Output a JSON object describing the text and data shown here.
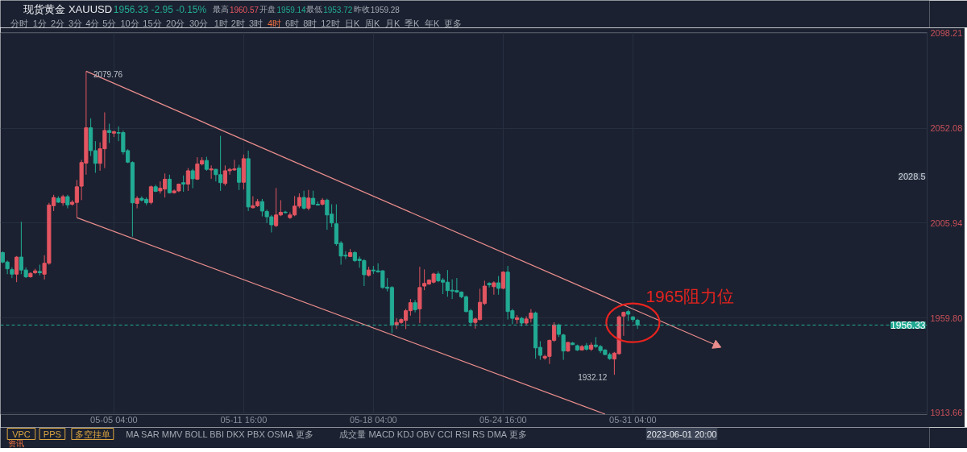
{
  "chart_data": {
    "type": "candlestick",
    "title": "现货黄金 XAUUSD",
    "subtitle": "1956.33 -2.95 -0.15%",
    "categories": [
      null,
      null,
      null,
      null,
      null,
      null,
      null,
      null,
      null,
      null,
      null,
      null,
      null,
      null,
      null,
      null,
      null,
      null,
      null,
      null,
      null,
      null,
      null,
      null,
      "05-05 04:00",
      null,
      null,
      null,
      null,
      null,
      null,
      null,
      null,
      null,
      null,
      null,
      null,
      null,
      null,
      null,
      null,
      null,
      null,
      null,
      null,
      null,
      null,
      null,
      null,
      null,
      null,
      null,
      "05-11 16:00",
      null,
      null,
      null,
      null,
      null,
      null,
      null,
      null,
      null,
      null,
      null,
      null,
      null,
      null,
      null,
      null,
      null,
      null,
      null,
      null,
      null,
      null,
      null,
      null,
      null,
      null,
      null,
      "05-18 04:00",
      null,
      null,
      null,
      null,
      null,
      null,
      null,
      null,
      null,
      null,
      null,
      null,
      null,
      null,
      null,
      null,
      null,
      null,
      null,
      null,
      null,
      null,
      null,
      null,
      null,
      null,
      null,
      "05-24 16:00",
      null,
      null,
      null,
      null,
      null,
      null,
      null,
      null,
      null,
      null,
      null,
      null,
      null,
      null,
      null,
      null,
      null,
      null,
      null,
      null,
      null,
      null,
      null,
      null,
      null,
      null,
      null,
      "05-31 04:00",
      null,
      null,
      null,
      null,
      null,
      null,
      null,
      null,
      null,
      null,
      null,
      null,
      null,
      null,
      null,
      null,
      null,
      null,
      null,
      null,
      null,
      null,
      null,
      null,
      null,
      null,
      null,
      null,
      null,
      null,
      null,
      null,
      null,
      null,
      null,
      null,
      null,
      null,
      null,
      null,
      null,
      null,
      null,
      null,
      null,
      null,
      null,
      null,
      null,
      null,
      null,
      null,
      null,
      null,
      null,
      null,
      null,
      null,
      null,
      null,
      null,
      null,
      null
    ],
    "ohlc": [
      [
        1991.6,
        1992.2,
        1986.4,
        1987.0
      ],
      [
        1987.0,
        1987.7,
        1981.1,
        1983.7
      ],
      [
        1983.3,
        1984.4,
        1979.2,
        1981.1
      ],
      [
        1981.1,
        1989.9,
        1977.2,
        1989.4
      ],
      [
        1989.4,
        2006.6,
        1981.1,
        1983.1
      ],
      [
        1983.1,
        1984.4,
        1979.2,
        1979.8
      ],
      [
        1979.8,
        1982.0,
        1979.4,
        1981.5
      ],
      [
        1981.8,
        1983.7,
        1981.1,
        1982.7
      ],
      [
        1982.4,
        1985.7,
        1980.5,
        1981.8
      ],
      [
        1981.1,
        1990.3,
        1978.5,
        1986.4
      ],
      [
        1986.4,
        2015.8,
        1985.7,
        2014.7
      ],
      [
        2014.4,
        2019.7,
        2011.8,
        2018.4
      ],
      [
        2018.0,
        2019.0,
        2015.8,
        2016.1
      ],
      [
        2015.8,
        2019.7,
        2014.4,
        2018.8
      ],
      [
        2018.8,
        2019.7,
        2013.1,
        2014.8
      ],
      [
        2015.1,
        2017.1,
        2014.4,
        2016.1
      ],
      [
        2016.0,
        2026.9,
        2008.6,
        2023.6
      ],
      [
        2023.9,
        2036.7,
        2017.1,
        2035.4
      ],
      [
        2035.1,
        2079.76,
        2029.5,
        2052.3
      ],
      [
        2052.3,
        2056.9,
        2038.6,
        2041.2
      ],
      [
        2041.2,
        2045.8,
        2030.4,
        2035.0
      ],
      [
        2035.0,
        2045.2,
        2031.4,
        2042.1
      ],
      [
        2042.1,
        2059.8,
        2032.7,
        2051.0
      ],
      [
        2051.0,
        2054.3,
        2044.9,
        2050.0
      ],
      [
        2049.7,
        2051.0,
        2047.8,
        2050.4
      ],
      [
        2050.0,
        2053.0,
        2045.8,
        2049.7
      ],
      [
        2050.0,
        2051.0,
        2039.3,
        2040.6
      ],
      [
        2041.2,
        2041.9,
        2035.1,
        2035.6
      ],
      [
        2035.4,
        2036.0,
        1999.4,
        2015.8
      ],
      [
        2015.5,
        2019.0,
        2013.1,
        2018.0
      ],
      [
        2018.0,
        2019.0,
        2016.4,
        2017.1
      ],
      [
        2017.5,
        2018.4,
        2014.7,
        2015.8
      ],
      [
        2016.0,
        2024.2,
        2015.1,
        2023.6
      ],
      [
        2023.6,
        2024.6,
        2021.0,
        2021.4
      ],
      [
        2021.6,
        2026.2,
        2020.3,
        2022.9
      ],
      [
        2022.5,
        2030.1,
        2018.4,
        2027.3
      ],
      [
        2027.3,
        2029.5,
        2020.3,
        2020.7
      ],
      [
        2020.7,
        2022.3,
        2020.3,
        2021.6
      ],
      [
        2021.6,
        2025.2,
        2021.0,
        2024.9
      ],
      [
        2025.6,
        2029.1,
        2021.2,
        2024.9
      ],
      [
        2024.9,
        2032.7,
        2021.6,
        2031.4
      ],
      [
        2031.4,
        2032.3,
        2022.9,
        2027.5
      ],
      [
        2027.3,
        2038.0,
        2026.9,
        2034.7
      ],
      [
        2034.7,
        2038.0,
        2034.0,
        2036.4
      ],
      [
        2036.4,
        2038.2,
        2031.4,
        2032.1
      ],
      [
        2031.8,
        2034.0,
        2027.5,
        2032.3
      ],
      [
        2032.1,
        2032.3,
        2026.2,
        2029.5
      ],
      [
        2029.5,
        2048.4,
        2021.6,
        2025.6
      ],
      [
        2025.2,
        2034.0,
        2024.2,
        2031.4
      ],
      [
        2031.4,
        2032.7,
        2029.5,
        2032.1
      ],
      [
        2031.8,
        2036.7,
        2031.4,
        2032.3
      ],
      [
        2032.7,
        2034.3,
        2022.0,
        2025.8
      ],
      [
        2025.8,
        2039.3,
        2022.3,
        2037.3
      ],
      [
        2037.3,
        2041.2,
        2011.8,
        2013.8
      ],
      [
        2013.4,
        2019.0,
        2013.1,
        2014.4
      ],
      [
        2014.4,
        2017.7,
        2013.8,
        2016.4
      ],
      [
        2016.4,
        2017.7,
        2009.2,
        2011.8
      ],
      [
        2011.6,
        2012.5,
        2006.0,
        2009.0
      ],
      [
        2009.0,
        2009.9,
        2001.4,
        2005.1
      ],
      [
        2004.7,
        2023.0,
        2004.0,
        2009.9
      ],
      [
        2009.9,
        2017.1,
        2009.3,
        2011.2
      ],
      [
        2011.3,
        2011.9,
        2010.6,
        2011.0
      ],
      [
        2008.6,
        2011.2,
        2008.0,
        2009.9
      ],
      [
        2009.9,
        2019.1,
        2009.3,
        2014.2
      ],
      [
        2014.2,
        2020.4,
        2013.2,
        2018.4
      ],
      [
        2018.4,
        2021.7,
        2012.5,
        2013.2
      ],
      [
        2013.2,
        2022.1,
        2012.1,
        2018.1
      ],
      [
        2018.0,
        2021.7,
        2014.7,
        2015.1
      ],
      [
        2015.1,
        2016.4,
        2014.5,
        2014.7
      ],
      [
        2015.1,
        2018.1,
        2014.5,
        2017.1
      ],
      [
        2017.1,
        2017.8,
        2002.7,
        2009.9
      ],
      [
        2010.3,
        2015.1,
        2004.0,
        2006.0
      ],
      [
        2005.6,
        2015.1,
        1994.9,
        1995.9
      ],
      [
        1996.2,
        1997.2,
        1985.7,
        1989.9
      ],
      [
        1990.3,
        1992.3,
        1988.4,
        1989.9
      ],
      [
        1989.7,
        1993.3,
        1989.4,
        1991.6
      ],
      [
        1991.6,
        1992.3,
        1987.0,
        1987.7
      ],
      [
        1988.4,
        1989.7,
        1984.2,
        1987.7
      ],
      [
        1987.7,
        1988.4,
        1975.3,
        1980.8
      ],
      [
        1980.5,
        1984.7,
        1979.9,
        1983.1
      ],
      [
        1983.1,
        1985.1,
        1981.2,
        1982.7
      ],
      [
        1982.7,
        1986.4,
        1981.8,
        1982.2
      ],
      [
        1982.7,
        1983.1,
        1974.0,
        1974.6
      ],
      [
        1974.8,
        1979.2,
        1972.7,
        1974.2
      ],
      [
        1974.6,
        1975.3,
        1952.4,
        1956.3
      ],
      [
        1956.3,
        1959.6,
        1954.4,
        1957.6
      ],
      [
        1957.6,
        1959.6,
        1957.0,
        1959.0
      ],
      [
        1958.6,
        1964.2,
        1954.4,
        1963.3
      ],
      [
        1963.3,
        1969.0,
        1960.9,
        1967.2
      ],
      [
        1967.2,
        1968.5,
        1962.5,
        1963.8
      ],
      [
        1964.2,
        1984.7,
        1957.3,
        1974.6
      ],
      [
        1975.3,
        1983.4,
        1973.3,
        1976.6
      ],
      [
        1976.3,
        1978.6,
        1975.9,
        1978.2
      ],
      [
        1977.2,
        1981.8,
        1976.6,
        1981.2
      ],
      [
        1981.2,
        1982.5,
        1977.2,
        1977.9
      ],
      [
        1978.2,
        1979.2,
        1971.4,
        1977.2
      ],
      [
        1977.2,
        1983.1,
        1970.1,
        1973.1
      ],
      [
        1973.3,
        1978.6,
        1969.0,
        1972.9
      ],
      [
        1973.1,
        1979.2,
        1972.0,
        1972.4
      ],
      [
        1972.4,
        1972.7,
        1969.4,
        1970.1
      ],
      [
        1970.1,
        1970.7,
        1962.5,
        1962.9
      ],
      [
        1963.3,
        1964.2,
        1955.7,
        1957.6
      ],
      [
        1957.6,
        1959.9,
        1954.6,
        1959.3
      ],
      [
        1959.0,
        1974.0,
        1958.6,
        1967.4
      ],
      [
        1966.8,
        1977.9,
        1966.1,
        1975.3
      ],
      [
        1976.6,
        1977.2,
        1974.6,
        1975.9
      ],
      [
        1975.0,
        1977.6,
        1971.1,
        1976.9
      ],
      [
        1976.9,
        1980.2,
        1971.1,
        1974.2
      ],
      [
        1974.2,
        1982.5,
        1973.7,
        1982.1
      ],
      [
        1982.1,
        1985.1,
        1959.0,
        1962.9
      ],
      [
        1963.3,
        1964.2,
        1956.7,
        1959.6
      ],
      [
        1959.0,
        1961.2,
        1957.0,
        1959.9
      ],
      [
        1959.6,
        1960.3,
        1955.7,
        1957.3
      ],
      [
        1957.3,
        1960.6,
        1956.3,
        1959.3
      ],
      [
        1959.6,
        1964.1,
        1957.6,
        1962.2
      ],
      [
        1962.2,
        1962.9,
        1940.0,
        1945.2
      ],
      [
        1945.5,
        1948.5,
        1939.4,
        1941.6
      ],
      [
        1940.3,
        1941.9,
        1939.4,
        1941.1
      ],
      [
        1941.1,
        1949.2,
        1937.4,
        1948.9
      ],
      [
        1948.9,
        1957.7,
        1948.1,
        1956.4
      ],
      [
        1956.4,
        1957.0,
        1950.5,
        1951.8
      ],
      [
        1951.5,
        1952.1,
        1939.4,
        1943.7
      ],
      [
        1943.7,
        1948.1,
        1943.3,
        1947.9
      ],
      [
        1947.6,
        1948.1,
        1946.6,
        1946.8
      ],
      [
        1946.3,
        1946.8,
        1943.7,
        1944.2
      ],
      [
        1944.2,
        1946.6,
        1943.9,
        1945.9
      ],
      [
        1946.3,
        1947.6,
        1943.9,
        1944.6
      ],
      [
        1944.6,
        1947.9,
        1943.7,
        1946.6
      ],
      [
        1946.6,
        1950.5,
        1945.2,
        1945.9
      ],
      [
        1945.9,
        1946.6,
        1942.7,
        1943.9
      ],
      [
        1944.2,
        1944.6,
        1941.6,
        1942.0
      ],
      [
        1942.0,
        1942.9,
        1939.4,
        1940.0
      ],
      [
        1939.8,
        1943.3,
        1932.12,
        1942.7
      ],
      [
        1942.4,
        1961.0,
        1941.9,
        1960.3
      ],
      [
        1960.7,
        1962.9,
        1951.1,
        1962.5
      ],
      [
        1962.9,
        1963.8,
        1958.3,
        1961.6
      ],
      [
        1960.3,
        1960.7,
        1957.7,
        1959.0
      ],
      [
        1958.7,
        1959.3,
        1954.4,
        1956.33
      ],
      null,
      null,
      null,
      null,
      null,
      null,
      null,
      null,
      null,
      null,
      null,
      null,
      null,
      null,
      null,
      null,
      null,
      null,
      null,
      null,
      null,
      null,
      null,
      null,
      null,
      null,
      null,
      null,
      null,
      null,
      null,
      null,
      null,
      null,
      null,
      null,
      null,
      null,
      null,
      null,
      null,
      null,
      null,
      null,
      null,
      null,
      null,
      null,
      null,
      null,
      null,
      null,
      null,
      null,
      null,
      null,
      null,
      null,
      null,
      null,
      null,
      null
    ],
    "colors": [
      "#22ab94",
      "#22ab94",
      "#22ab94",
      "#e35561",
      "#22ab94",
      "#22ab94",
      "#e35561",
      "#e35561",
      "#22ab94",
      "#e35561",
      "#e35561",
      "#e35561",
      "#22ab94",
      "#e35561",
      "#22ab94",
      "#e35561",
      "#e35561",
      "#e35561",
      "#e35561",
      "#22ab94",
      "#22ab94",
      "#e35561",
      "#e35561",
      "#22ab94",
      "#e35561",
      "#22ab94",
      "#22ab94",
      "#22ab94",
      "#22ab94",
      "#e35561",
      "#22ab94",
      "#22ab94",
      "#e35561",
      "#22ab94",
      "#e35561",
      "#e35561",
      "#22ab94",
      "#e35561",
      "#e35561",
      "#22ab94",
      "#e35561",
      "#22ab94",
      "#e35561",
      "#e35561",
      "#22ab94",
      "#e35561",
      "#22ab94",
      "#22ab94",
      "#e35561",
      "#e35561",
      "#e35561",
      "#22ab94",
      "#e35561",
      "#22ab94",
      "#e35561",
      "#e35561",
      "#22ab94",
      "#22ab94",
      "#22ab94",
      "#e35561",
      "#e35561",
      "#22ab94",
      "#e35561",
      "#e35561",
      "#e35561",
      "#22ab94",
      "#e35561",
      "#22ab94",
      "#22ab94",
      "#e35561",
      "#22ab94",
      "#22ab94",
      "#22ab94",
      "#22ab94",
      "#22ab94",
      "#e35561",
      "#22ab94",
      "#22ab94",
      "#22ab94",
      "#e35561",
      "#22ab94",
      "#22ab94",
      "#22ab94",
      "#22ab94",
      "#22ab94",
      "#e35561",
      "#e35561",
      "#e35561",
      "#e35561",
      "#22ab94",
      "#e35561",
      "#e35561",
      "#e35561",
      "#e35561",
      "#22ab94",
      "#22ab94",
      "#22ab94",
      "#22ab94",
      "#22ab94",
      "#22ab94",
      "#22ab94",
      "#22ab94",
      "#e35561",
      "#e35561",
      "#e35561",
      "#22ab94",
      "#e35561",
      "#22ab94",
      "#e35561",
      "#22ab94",
      "#22ab94",
      "#e35561",
      "#22ab94",
      "#e35561",
      "#e35561",
      "#22ab94",
      "#22ab94",
      "#e35561",
      "#e35561",
      "#e35561",
      "#22ab94",
      "#22ab94",
      "#e35561",
      "#22ab94",
      "#22ab94",
      "#e35561",
      "#22ab94",
      "#e35561",
      "#22ab94",
      "#22ab94",
      "#22ab94",
      "#22ab94",
      "#e35561",
      "#e35561",
      "#e35561",
      "#22ab94",
      "#22ab94",
      "#22ab94",
      null,
      null,
      null,
      null,
      null,
      null,
      null,
      null,
      null,
      null,
      null,
      null,
      null,
      null,
      null,
      null,
      null,
      null,
      null,
      null,
      null,
      null,
      null,
      null,
      null,
      null,
      null,
      null,
      null,
      null,
      null,
      null,
      null,
      null,
      null,
      null,
      null,
      null,
      null,
      null,
      null,
      null,
      null,
      null,
      null,
      null,
      null,
      null,
      null,
      null,
      null,
      null,
      null,
      null,
      null,
      null,
      null,
      null,
      null,
      null,
      null,
      null
    ],
    "ylim": [
      1912.8,
      2098.6
    ],
    "yticks": [
      1913.66,
      {
        "value": 1959.8,
        "label": "1959.80"
      },
      2005.94,
      2052.08,
      2098.21
    ],
    "grid": true,
    "series": [
      {
        "type": "line",
        "color": "#e88c8c",
        "marker": "triangle",
        "values": [
          null,
          null,
          null,
          null,
          null,
          null,
          null,
          null,
          null,
          null,
          null,
          null,
          null,
          null,
          null,
          null,
          null,
          null,
          2079.8,
          null,
          null,
          null,
          null,
          null,
          null,
          null,
          null,
          null,
          null,
          null,
          null,
          null,
          null,
          null,
          null,
          null,
          null,
          null,
          null,
          null,
          null,
          null,
          null,
          null,
          null,
          null,
          null,
          null,
          null,
          null,
          null,
          null,
          null,
          null,
          null,
          null,
          null,
          null,
          null,
          null,
          null,
          null,
          null,
          null,
          null,
          null,
          null,
          null,
          null,
          null,
          null,
          null,
          null,
          null,
          null,
          null,
          null,
          null,
          null,
          null,
          null,
          null,
          null,
          null,
          null,
          null,
          null,
          null,
          null,
          null,
          null,
          null,
          null,
          null,
          null,
          null,
          null,
          null,
          null,
          null,
          null,
          null,
          null,
          null,
          null,
          null,
          null,
          null,
          null,
          null,
          null,
          null,
          null,
          null,
          null,
          null,
          null,
          null,
          null,
          null,
          null,
          null,
          null,
          null,
          null,
          null,
          null,
          null,
          null,
          null,
          null,
          null,
          null,
          null,
          null,
          null,
          null,
          null,
          null,
          null,
          null,
          null,
          null,
          null,
          null,
          null,
          null,
          null,
          null,
          null,
          null,
          null,
          null,
          null,
          1946.5,
          null,
          null,
          null,
          null,
          null,
          null,
          null,
          null,
          null,
          null,
          null,
          null,
          null,
          null,
          null,
          null,
          null,
          null,
          null,
          null,
          null,
          null,
          null,
          null,
          null,
          null,
          null,
          null,
          null,
          null,
          null,
          null,
          null,
          null,
          null,
          null,
          null,
          null,
          null,
          null,
          null,
          null,
          null,
          null,
          null
        ]
      },
      {
        "type": "line",
        "color": "#e88c8c",
        "values": [
          null,
          null,
          null,
          null,
          null,
          null,
          null,
          null,
          null,
          null,
          null,
          null,
          null,
          null,
          null,
          null,
          2008.6,
          null,
          null,
          null,
          null,
          null,
          null,
          null,
          null,
          null,
          null,
          null,
          null,
          null,
          null,
          null,
          null,
          null,
          null,
          null,
          null,
          null,
          null,
          null,
          null,
          null,
          null,
          null,
          null,
          null,
          null,
          null,
          null,
          null,
          null,
          null,
          null,
          null,
          null,
          null,
          null,
          null,
          null,
          null,
          null,
          null,
          null,
          null,
          null,
          null,
          null,
          null,
          null,
          null,
          null,
          null,
          null,
          null,
          null,
          null,
          null,
          null,
          null,
          null,
          null,
          null,
          null,
          null,
          null,
          null,
          null,
          null,
          null,
          null,
          null,
          null,
          null,
          null,
          null,
          null,
          null,
          null,
          null,
          null,
          null,
          null,
          null,
          null,
          null,
          null,
          null,
          null,
          null,
          null,
          null,
          null,
          null,
          null,
          null,
          null,
          null,
          null,
          null,
          null,
          null,
          null,
          null,
          null,
          null,
          null,
          null,
          null,
          null,
          null,
          1913.0,
          null,
          null,
          null,
          null,
          null,
          null,
          null,
          null,
          null,
          null,
          null,
          null,
          null,
          null,
          null,
          null,
          null,
          null,
          null,
          null,
          null,
          null,
          null,
          null,
          null,
          null,
          null,
          null,
          null,
          null,
          null,
          null,
          null,
          null,
          null,
          null,
          null,
          null,
          null,
          null,
          null,
          null,
          null,
          null,
          null,
          null,
          null,
          null,
          null,
          null,
          null,
          null,
          null,
          null,
          null,
          null,
          null,
          null,
          null,
          null,
          null,
          null,
          null,
          null,
          null,
          null,
          null,
          null,
          null
        ]
      }
    ],
    "ref_lines": [
      {
        "axis": "y",
        "value": 1956.33,
        "label": "1956.33",
        "color": "#22ab94",
        "line_style": "dashed"
      }
    ],
    "annotations": [
      "2079.76",
      "1932.12",
      "1965阻力位",
      "最高",
      "1960.57",
      "开盘",
      "1959.14",
      "最低",
      "1953.72",
      "昨收",
      "1959.28",
      "分时",
      "1分",
      "2分",
      "3分",
      "4分",
      "5分",
      "10分",
      "15分",
      "20分",
      "30分",
      "1时",
      "2时",
      "3时",
      "4时",
      "6时",
      "8时",
      "12时",
      "日K",
      "周K",
      "月K",
      "季K",
      "年K",
      "更多",
      "2028.5",
      "2023-06-01 20:00",
      "VPC",
      "PPS",
      "多空挂单",
      "MA  SAR  MMV  BOLL  BBI  DKX  PBX  OSMA  更多",
      "成交量  MACD  KDJ  OBV  CCI  RSI  RS  DMA  更多",
      "资讯"
    ]
  }
}
